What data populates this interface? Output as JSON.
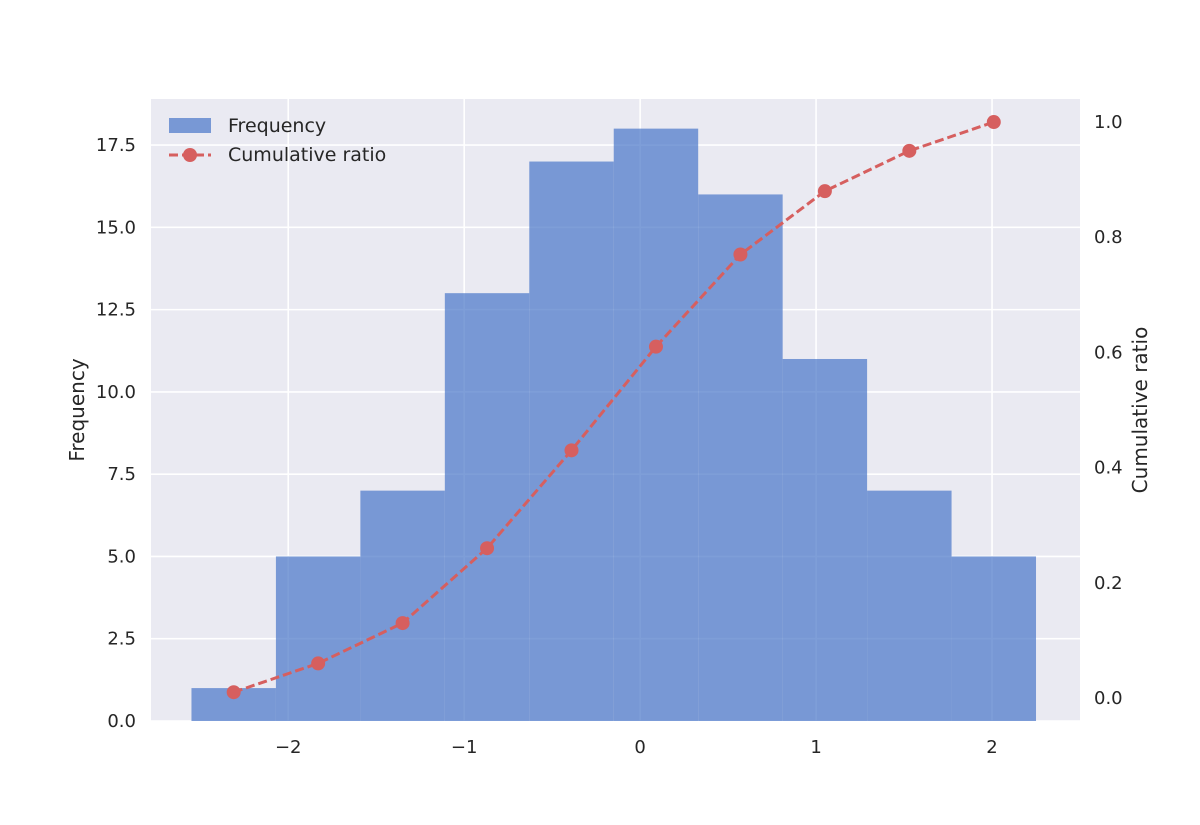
{
  "chart_data": {
    "type": "bar",
    "histogram": {
      "name": "Frequency",
      "bin_edges": [
        -2.55,
        -2.07,
        -1.59,
        -1.11,
        -0.63,
        -0.15,
        0.33,
        0.81,
        1.29,
        1.77,
        2.25
      ],
      "counts": [
        1,
        5,
        7,
        13,
        17,
        18,
        16,
        11,
        7,
        5
      ],
      "color": "#4c78c9"
    },
    "cumulative": {
      "name": "Cumulative ratio",
      "x": [
        -2.31,
        -1.83,
        -1.35,
        -0.87,
        -0.39,
        0.09,
        0.57,
        1.05,
        1.53,
        2.01
      ],
      "values": [
        0.01,
        0.06,
        0.13,
        0.26,
        0.43,
        0.61,
        0.77,
        0.88,
        0.95,
        1.0
      ],
      "color": "#d65f5f"
    },
    "xlim": [
      -2.78,
      2.5
    ],
    "ylim_left": [
      0,
      18.9
    ],
    "ylim_right": [
      -0.04,
      1.04
    ],
    "x_ticks": [
      -2,
      -1,
      0,
      1,
      2
    ],
    "x_tick_labels": [
      "−2",
      "−1",
      "0",
      "1",
      "2"
    ],
    "y_left_ticks": [
      0,
      2.5,
      5,
      7.5,
      10,
      12.5,
      15,
      17.5
    ],
    "y_left_tick_labels": [
      "0.0",
      "2.5",
      "5.0",
      "7.5",
      "10.0",
      "12.5",
      "15.0",
      "17.5"
    ],
    "y_right_ticks": [
      0,
      0.2,
      0.4,
      0.6,
      0.8,
      1.0
    ],
    "y_right_tick_labels": [
      "0.0",
      "0.2",
      "0.4",
      "0.6",
      "0.8",
      "1.0"
    ],
    "ylabel_left": "Frequency",
    "ylabel_right": "Cumulative ratio",
    "legend": {
      "placement": "top-left",
      "entries": [
        "Frequency",
        "Cumulative ratio"
      ]
    },
    "grid": true,
    "background": "#eaeaf2"
  }
}
